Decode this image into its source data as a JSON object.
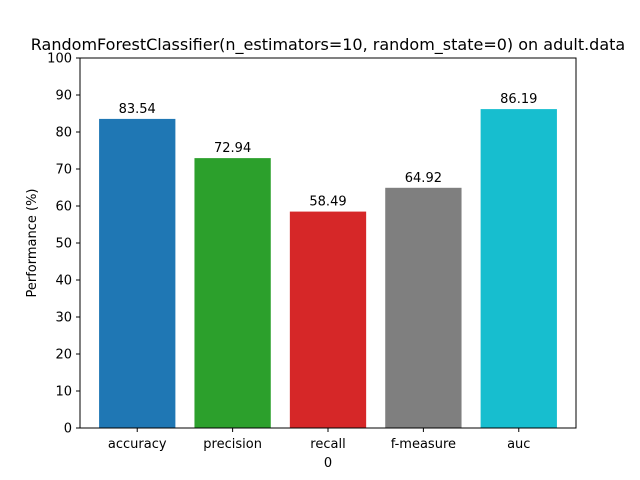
{
  "chart_data": {
    "type": "bar",
    "title": "RandomForestClassifier(n_estimators=10, random_state=0) on adult.data",
    "xlabel": "0",
    "ylabel": "Performance (%)",
    "ylim": [
      0,
      100
    ],
    "yticks": [
      0,
      10,
      20,
      30,
      40,
      50,
      60,
      70,
      80,
      90,
      100
    ],
    "categories": [
      "accuracy",
      "precision",
      "recall",
      "f-measure",
      "auc"
    ],
    "values": [
      83.54,
      72.94,
      58.49,
      64.92,
      86.19
    ],
    "value_labels": [
      "83.54",
      "72.94",
      "58.49",
      "64.92",
      "86.19"
    ],
    "colors": [
      "#1f77b4",
      "#2ca02c",
      "#d62728",
      "#7f7f7f",
      "#17becf"
    ],
    "grid": false,
    "legend": "none"
  }
}
